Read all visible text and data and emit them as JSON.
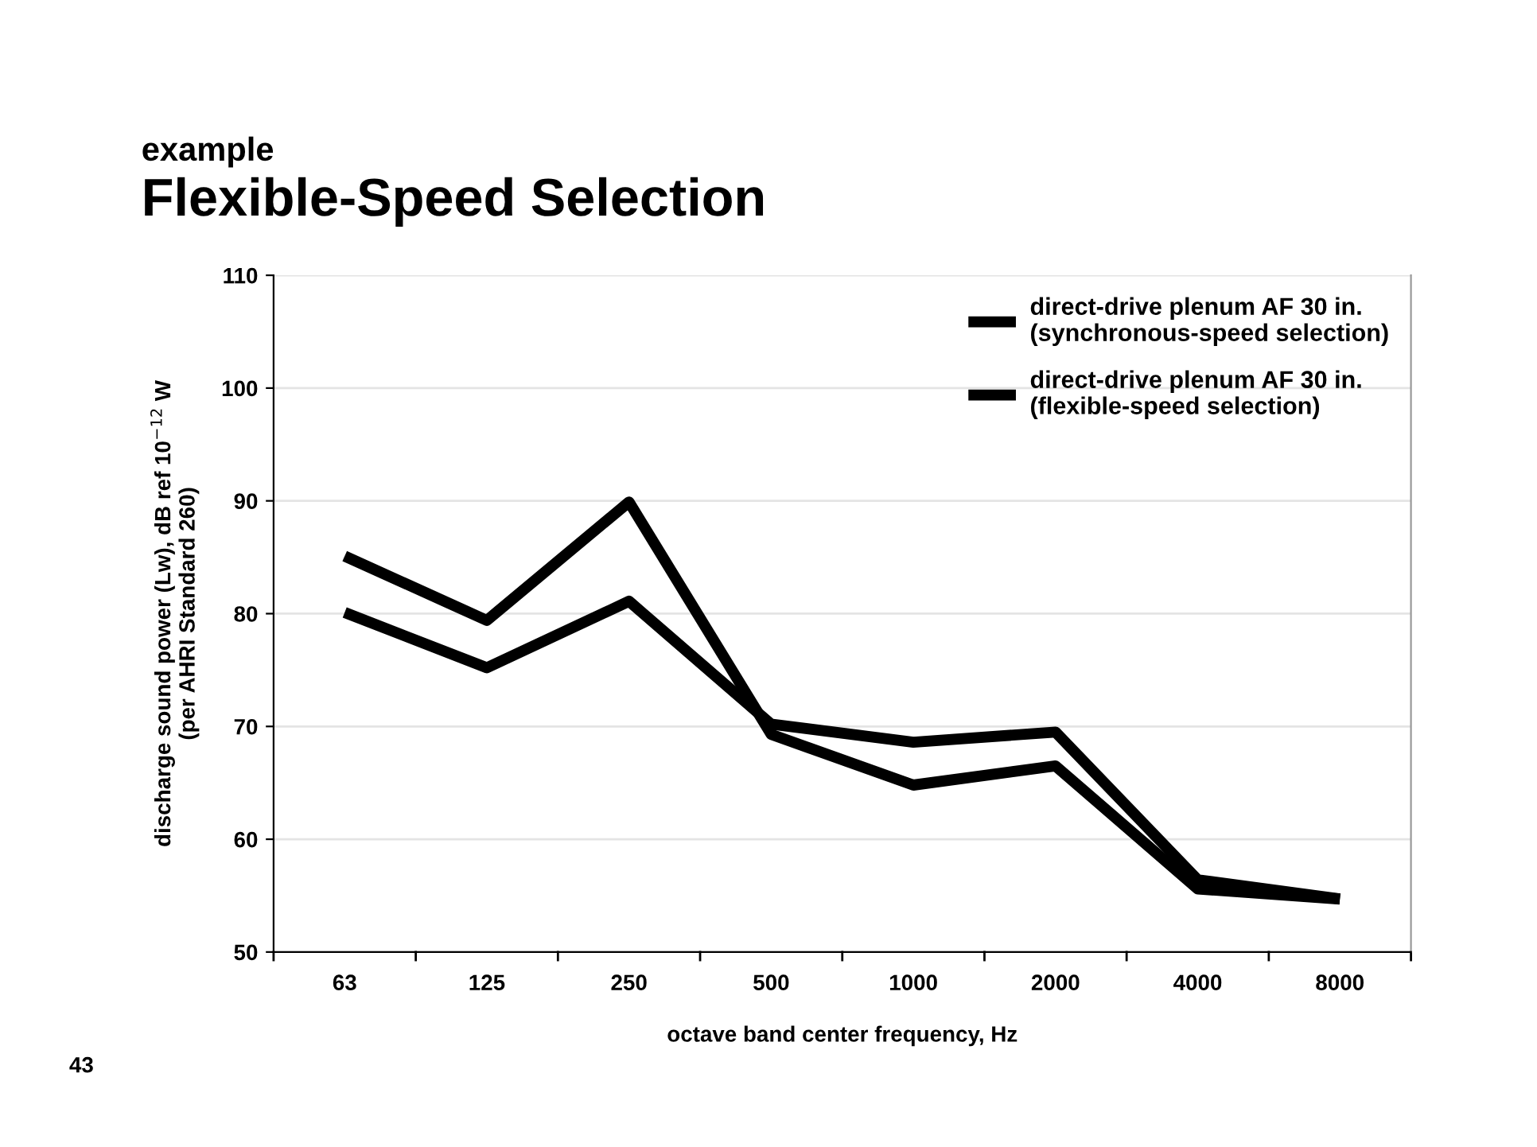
{
  "chart_data": {
    "type": "line",
    "subtitle": "example",
    "title": "Flexible-Speed Selection",
    "xlabel": "octave band center frequency, Hz",
    "ylabel": "discharge sound power (Lw), dB ref 10$^{−12}$ W\n(per AHRI Standard 260)",
    "categories": [
      "63",
      "125",
      "250",
      "500",
      "1000",
      "2000",
      "4000",
      "8000"
    ],
    "series": [
      {
        "name": "direct-drive plenum AF 30 in.\n(synchronous-speed selection)",
        "color": "#000000",
        "values": [
          85.1,
          79.4,
          89.9,
          69.3,
          64.8,
          66.5,
          55.6,
          54.7
        ]
      },
      {
        "name": "direct-drive plenum AF 30 in.\n(flexible-speed selection)",
        "color": "#000000",
        "values": [
          80.1,
          75.2,
          81.1,
          70.2,
          68.6,
          69.5,
          56.4,
          54.7
        ]
      }
    ],
    "ylim": [
      50,
      110
    ],
    "yticks": [
      50,
      60,
      70,
      80,
      90,
      100,
      110
    ],
    "grid": "y",
    "legend": "top right",
    "marker": "none",
    "line_style": "solid",
    "annotations": [
      "43"
    ]
  }
}
